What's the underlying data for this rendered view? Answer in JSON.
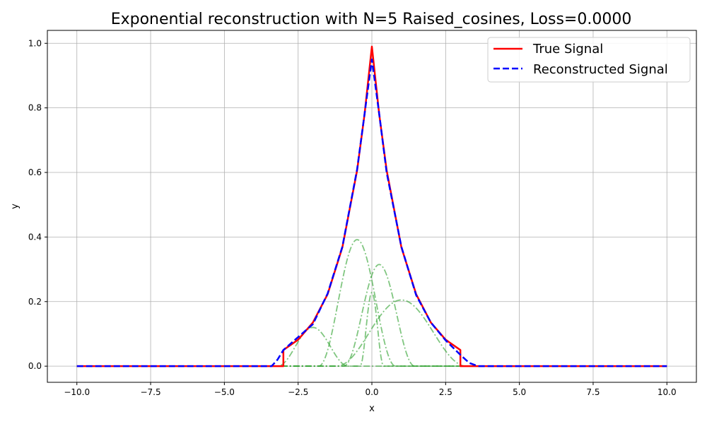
{
  "chart_data": {
    "type": "line",
    "title": "Exponential reconstruction with N=5 Raised_cosines, Loss=0.0000",
    "xlabel": "x",
    "ylabel": "y",
    "xlim": [
      -11.0,
      11.0
    ],
    "ylim": [
      -0.05,
      1.04
    ],
    "xticks": [
      -10.0,
      -7.5,
      -5.0,
      -2.5,
      0.0,
      2.5,
      5.0,
      7.5,
      10.0
    ],
    "xtick_labels": [
      "−10.0",
      "−7.5",
      "−5.0",
      "−2.5",
      "0.0",
      "2.5",
      "5.0",
      "7.5",
      "10.0"
    ],
    "yticks": [
      0.0,
      0.2,
      0.4,
      0.6,
      0.8,
      1.0
    ],
    "ytick_labels": [
      "0.0",
      "0.2",
      "0.4",
      "0.6",
      "0.8",
      "1.0"
    ],
    "grid": true,
    "legend_position": "top-right",
    "series": [
      {
        "name": "True Signal",
        "color": "#ff0000",
        "style": "solid",
        "x": [
          -10.0,
          -3.0,
          -3.0,
          -2.5,
          -2.0,
          -1.5,
          -1.0,
          -0.5,
          -0.25,
          0.0,
          0.25,
          0.5,
          1.0,
          1.5,
          2.0,
          2.5,
          3.0,
          3.0,
          10.0
        ],
        "y": [
          0.0,
          0.0,
          0.05,
          0.082,
          0.135,
          0.223,
          0.368,
          0.607,
          0.779,
          0.99,
          0.779,
          0.607,
          0.368,
          0.223,
          0.135,
          0.082,
          0.05,
          0.0,
          0.0
        ]
      },
      {
        "name": "Reconstructed Signal",
        "color": "#0000ff",
        "style": "dashed",
        "x": [
          -10.0,
          -3.4,
          -3.2,
          -3.0,
          -2.5,
          -2.0,
          -1.5,
          -1.0,
          -0.5,
          -0.25,
          0.0,
          0.25,
          0.5,
          1.0,
          1.5,
          2.0,
          2.5,
          3.0,
          3.3,
          3.6,
          10.0
        ],
        "y": [
          0.0,
          0.0,
          0.02,
          0.05,
          0.09,
          0.13,
          0.225,
          0.37,
          0.61,
          0.78,
          0.95,
          0.78,
          0.6,
          0.37,
          0.22,
          0.135,
          0.08,
          0.035,
          0.01,
          0.0,
          0.0
        ]
      }
    ],
    "basis_functions": {
      "color": "#2ca02c",
      "style": "dashdot",
      "opacity": 0.6,
      "bumps": [
        {
          "center": -2.0,
          "half_width": 1.2,
          "amplitude": 0.12
        },
        {
          "center": -0.5,
          "half_width": 1.3,
          "amplitude": 0.392
        },
        {
          "center": 0.0,
          "half_width": 0.4,
          "amplitude": 0.228
        },
        {
          "center": 0.25,
          "half_width": 1.2,
          "amplitude": 0.315
        },
        {
          "center": 1.0,
          "half_width": 2.2,
          "amplitude": 0.205
        }
      ]
    }
  }
}
